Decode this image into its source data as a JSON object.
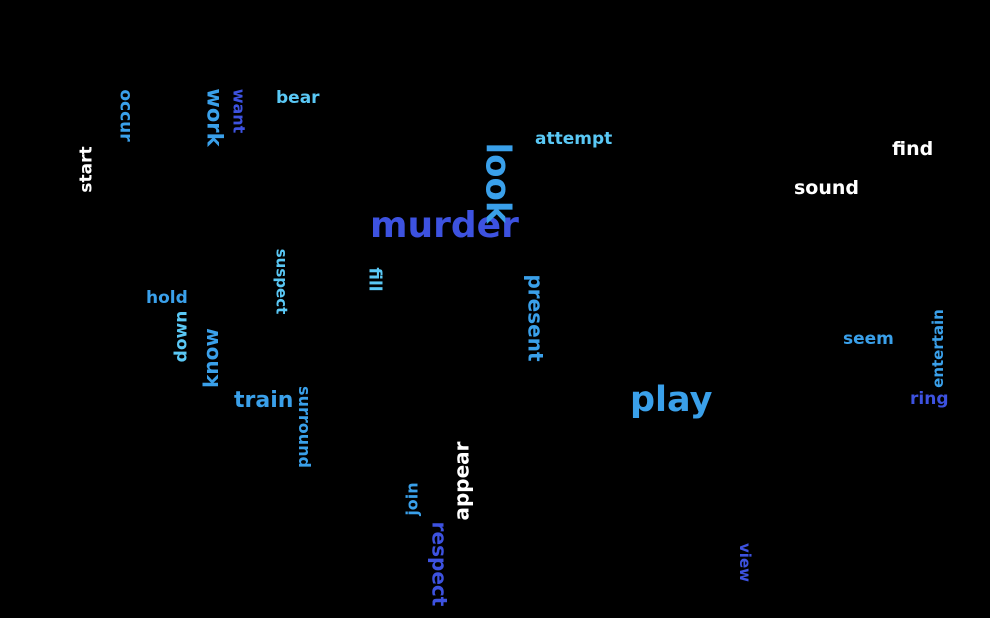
{
  "colors": {
    "background": "#000000",
    "white": "#ffffff",
    "sky": "#5ac8f5",
    "mid_blue": "#3aa0ea",
    "royal_blue": "#3d52e0"
  },
  "words": [
    {
      "id": "murder",
      "text": "murder",
      "color": "#3d52e0"
    },
    {
      "id": "look",
      "text": "look",
      "color": "#3aa0ea"
    },
    {
      "id": "play",
      "text": "play",
      "color": "#3aa0ea"
    },
    {
      "id": "bear",
      "text": "bear",
      "color": "#5ac8f5"
    },
    {
      "id": "attempt",
      "text": "attempt",
      "color": "#5ac8f5"
    },
    {
      "id": "find",
      "text": "find",
      "color": "#ffffff"
    },
    {
      "id": "sound",
      "text": "sound",
      "color": "#ffffff"
    },
    {
      "id": "occur",
      "text": "occur",
      "color": "#3aa0ea"
    },
    {
      "id": "work",
      "text": "work",
      "color": "#3aa0ea"
    },
    {
      "id": "want",
      "text": "want",
      "color": "#3d52e0"
    },
    {
      "id": "start",
      "text": "start",
      "color": "#ffffff"
    },
    {
      "id": "suspect",
      "text": "suspect",
      "color": "#5ac8f5"
    },
    {
      "id": "fill",
      "text": "fill",
      "color": "#5ac8f5"
    },
    {
      "id": "present",
      "text": "present",
      "color": "#3aa0ea"
    },
    {
      "id": "hold",
      "text": "hold",
      "color": "#3aa0ea"
    },
    {
      "id": "down",
      "text": "down",
      "color": "#5ac8f5"
    },
    {
      "id": "know",
      "text": "know",
      "color": "#3aa0ea"
    },
    {
      "id": "train",
      "text": "train",
      "color": "#3aa0ea"
    },
    {
      "id": "surround",
      "text": "surround",
      "color": "#3aa0ea"
    },
    {
      "id": "seem",
      "text": "seem",
      "color": "#3aa0ea"
    },
    {
      "id": "entertain",
      "text": "entertain",
      "color": "#3aa0ea"
    },
    {
      "id": "ring",
      "text": "ring",
      "color": "#3d52e0"
    },
    {
      "id": "appear",
      "text": "appear",
      "color": "#ffffff"
    },
    {
      "id": "join",
      "text": "join",
      "color": "#3aa0ea"
    },
    {
      "id": "respect",
      "text": "respect",
      "color": "#3d52e0"
    },
    {
      "id": "view",
      "text": "view",
      "color": "#3d52e0"
    }
  ]
}
